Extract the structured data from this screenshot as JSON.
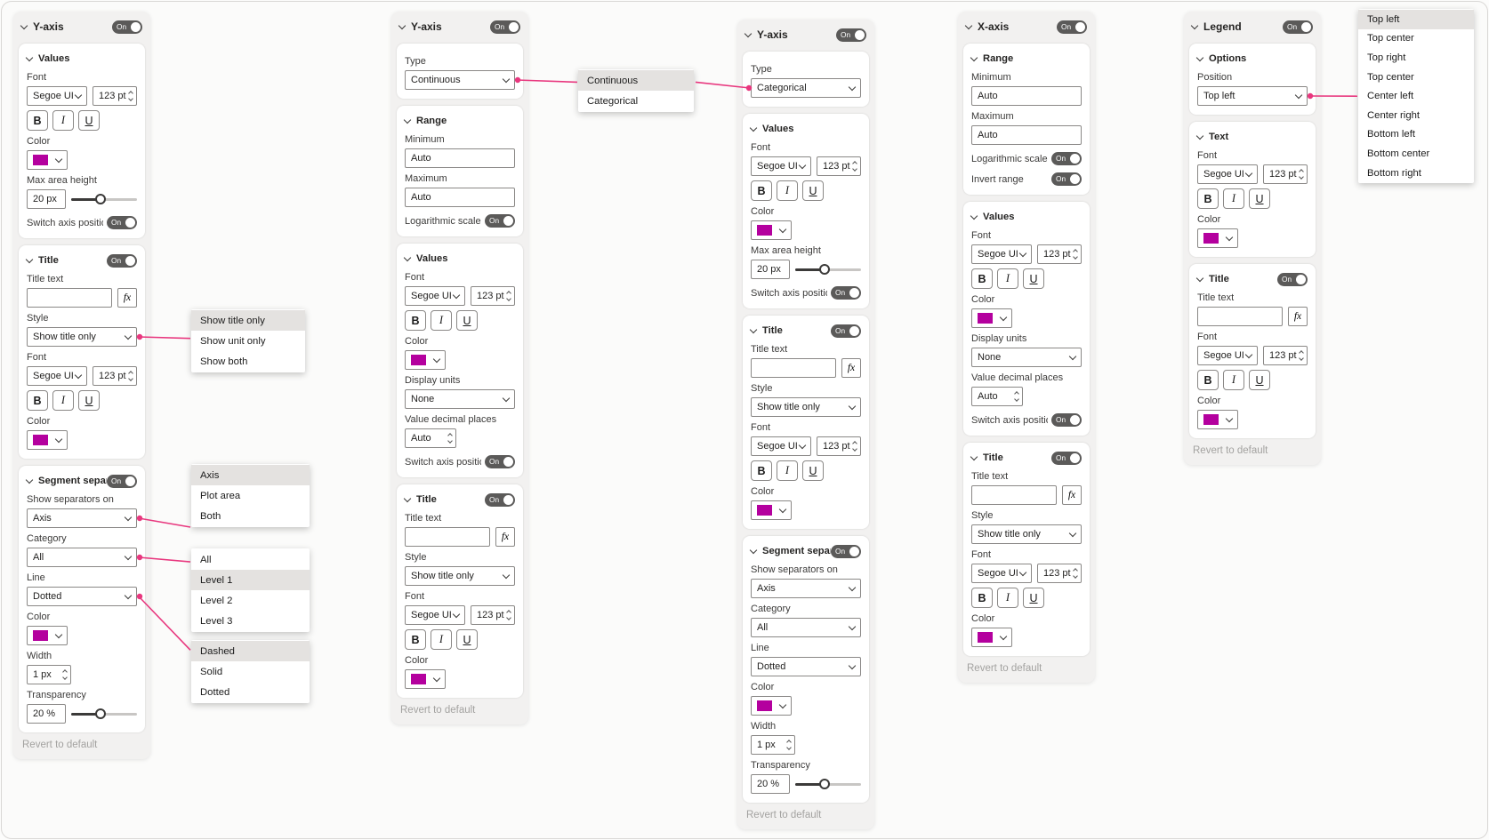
{
  "colors": {
    "accent_pink": "#e8377e",
    "swatch_magenta": "#b4009e",
    "toggle_bg": "#5b5a59"
  },
  "common": {
    "on": "On",
    "values": "Values",
    "title": "Title",
    "text": "Text",
    "options": "Options",
    "font": "Font",
    "font_family": "Segoe UI",
    "font_size": "123 pt",
    "bold": "B",
    "italic": "I",
    "underline": "U",
    "color": "Color",
    "max_area_height": "Max area height",
    "max_area_value": "20 px",
    "switch_axis_position": "Switch axis position",
    "title_text": "Title text",
    "fx": "fx",
    "style": "Style",
    "show_title_only": "Show title only",
    "segment_separator": "Segment separ..",
    "show_separators_on": "Show separators on",
    "axis": "Axis",
    "category": "Category",
    "all": "All",
    "line": "Line",
    "dotted": "Dotted",
    "width": "Width",
    "width_value": "1 px",
    "transparency": "Transparency",
    "transparency_value": "20 %",
    "revert": "Revert to default",
    "type": "Type",
    "range": "Range",
    "minimum": "Minimum",
    "maximum": "Maximum",
    "auto": "Auto",
    "logarithmic_scale": "Logarithmic scale",
    "invert_range": "Invert range",
    "display_units": "Display units",
    "none": "None",
    "value_decimal_places": "Value decimal places",
    "position": "Position"
  },
  "panels": {
    "p1": {
      "title": "Y-axis"
    },
    "p2": {
      "title": "Y-axis",
      "type_value": "Continuous"
    },
    "p3": {
      "title": "Y-axis",
      "type_value": "Categorical"
    },
    "p4": {
      "title": "X-axis"
    },
    "p5": {
      "title": "Legend",
      "position_value": "Top left"
    }
  },
  "menus": {
    "style": {
      "items": [
        "Show title only",
        "Show unit only",
        "Show both"
      ],
      "highlighted_index": 0
    },
    "separators": {
      "items": [
        "Axis",
        "Plot area",
        "Both"
      ],
      "highlighted_index": 0
    },
    "category": {
      "items": [
        "All",
        "Level 1",
        "Level 2",
        "Level 3"
      ],
      "highlighted_index": 1
    },
    "line": {
      "items": [
        "Dashed",
        "Solid",
        "Dotted"
      ],
      "highlighted_index": 0
    },
    "type": {
      "items": [
        "Continuous",
        "Categorical"
      ],
      "highlighted_index": 0
    },
    "position": {
      "items": [
        "Top left",
        "Top center",
        "Top right",
        "Top center",
        "Center left",
        "Center right",
        "Bottom left",
        "Bottom center",
        "Bottom right"
      ],
      "highlighted_index": 0
    }
  },
  "connectors": [
    {
      "from": "p1-style-dd",
      "to": "menu-style",
      "fromY": 0.5,
      "toY": 0.46,
      "dot": "from"
    },
    {
      "from": "p1-sep-dd",
      "to": "menu-separators",
      "fromY": 0.5,
      "toY": 1.0,
      "dot": "from"
    },
    {
      "from": "p1-cat-dd",
      "to": "menu-category",
      "fromY": 0.5,
      "toY": 0.16,
      "dot": "from"
    },
    {
      "from": "p1-line-dd",
      "to": "menu-line",
      "fromY": 0.5,
      "toY": 0.16,
      "dot": "from"
    },
    {
      "from": "p2-type-dd",
      "to": "menu-type",
      "fromY": 0.5,
      "toY": 0.3,
      "dot": "from"
    },
    {
      "from": "menu-type",
      "to": "p3-type-dd",
      "fromY": 0.3,
      "toY": 0.5,
      "dot": "to"
    },
    {
      "from": "p5-position-dd",
      "to": "menu-position",
      "fromY": 0.5,
      "toY": 0.5,
      "dot": "from"
    }
  ]
}
